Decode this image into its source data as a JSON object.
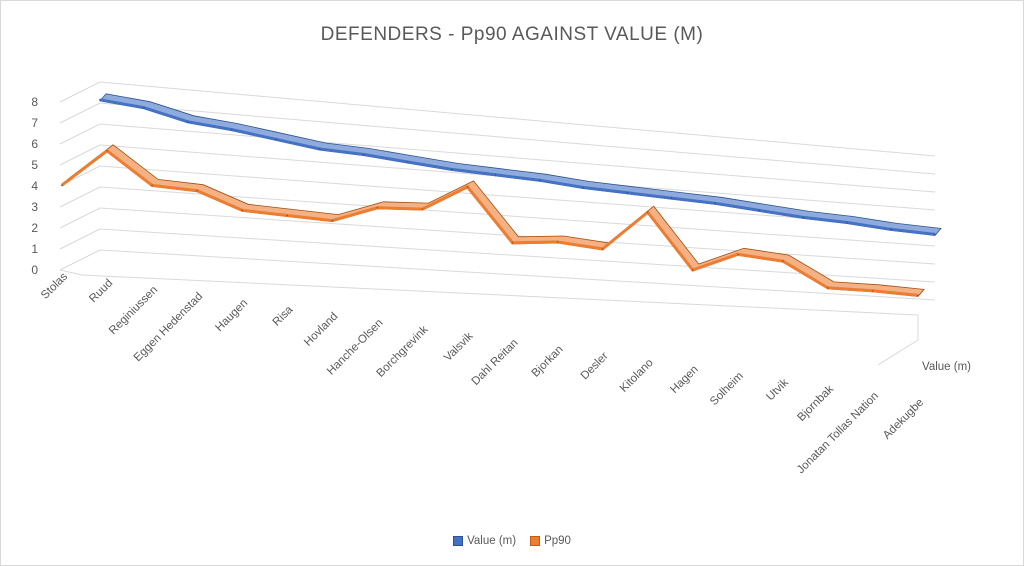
{
  "chart_data": {
    "type": "line",
    "title": "DEFENDERS - Pp90 AGAINST VALUE (M)",
    "depth_axis_label": "Value (m)",
    "categories": [
      "Stolas",
      "Ruud",
      "Reginiussen",
      "Eggen Hedenstad",
      "Haugen",
      "Risa",
      "Hovland",
      "Hanche-Olsen",
      "Borchgrevink",
      "Valsvik",
      "Dahl Reitan",
      "Bjorkan",
      "Desler",
      "Kitolano",
      "Hagen",
      "Solheim",
      "Utvik",
      "Bjornbak",
      "Jonatan Tollas Nation",
      "Adekugbe"
    ],
    "series": [
      {
        "name": "Value (m)",
        "color": "#4472c4",
        "values": [
          7.2,
          7.0,
          6.5,
          6.3,
          6.0,
          5.7,
          5.6,
          5.4,
          5.2,
          5.1,
          5.0,
          4.8,
          4.7,
          4.6,
          4.5,
          4.3,
          4.1,
          4.0,
          3.8,
          3.7
        ]
      },
      {
        "name": "Pp90",
        "color": "#ed7d31",
        "values": [
          3.9,
          5.7,
          4.2,
          4.1,
          3.3,
          3.2,
          3.1,
          3.9,
          4.0,
          5.3,
          2.6,
          2.8,
          2.6,
          4.7,
          1.8,
          2.8,
          2.6,
          1.3,
          1.3,
          1.2
        ]
      }
    ],
    "y_ticks": [
      "0",
      "1",
      "2",
      "3",
      "4",
      "5",
      "6",
      "7",
      "8"
    ],
    "ylim": [
      0,
      8
    ],
    "grid": true,
    "legend_position": "bottom",
    "view": "3d-line"
  }
}
